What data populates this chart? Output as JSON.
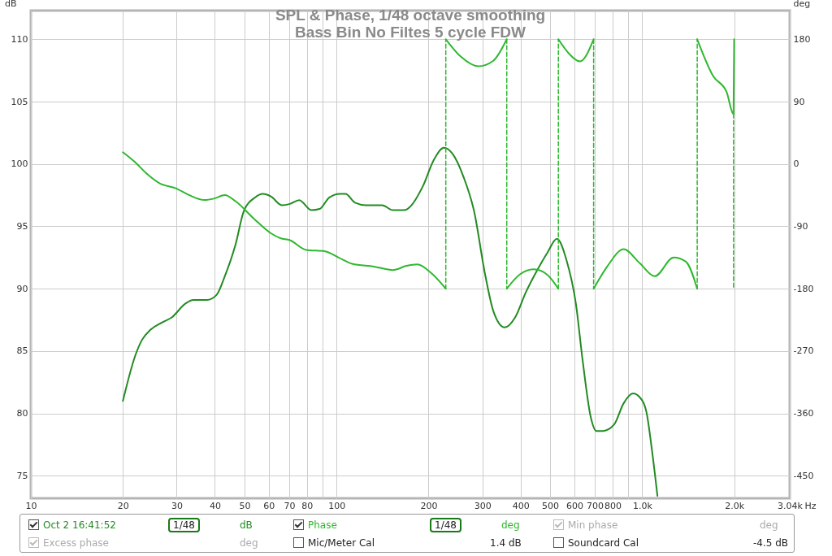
{
  "chart_data": {
    "type": "line",
    "title": "SPL & Phase, 1/48 octave smoothing",
    "subtitle": "Bass Bin No Filtes 5 cycle FDW",
    "xlabel": "Hz",
    "ylabel": "dB",
    "y2label": "deg",
    "log": "x",
    "grid": true,
    "legend": "bottom",
    "xlim": [
      10,
      3040
    ],
    "xticks": [
      10,
      20,
      30,
      40,
      50,
      60,
      70,
      80,
      {
        "value": 90,
        "label": null
      },
      100,
      200,
      300,
      400,
      500,
      600,
      700,
      800,
      {
        "value": 900,
        "label": null
      },
      {
        "value": 1000,
        "label": "1.0k"
      },
      {
        "value": 2000,
        "label": "2.0k"
      },
      {
        "value": 3040,
        "label": "3.04k"
      }
    ],
    "ylim": [
      73.2,
      112.3
    ],
    "yticks": [
      75,
      80,
      85,
      90,
      95,
      100,
      105,
      110
    ],
    "y2lim": [
      -482.4,
      221.4
    ],
    "y2ticks": [
      -450,
      -360,
      -270,
      -180,
      -90,
      0,
      90,
      180
    ],
    "series": [
      {
        "name": "Oct 2 16:41:52",
        "color": "#228b22",
        "x": [
          20,
          22,
          23.1,
          24.6,
          26.9,
          28.9,
          32,
          34,
          37.7,
          40.5,
          43.1,
          46.8,
          49.7,
          54,
          57.4,
          61,
          66.2,
          70.4,
          75.5,
          82.8,
          88.1,
          94.6,
          102.7,
          107,
          115,
          124.7,
          141,
          153,
          166,
          191.5,
          207.8,
          224.6,
          239.9,
          260,
          282,
          306,
          326,
          355,
          384,
          416,
          451.5,
          490,
          526,
          565.5,
          607,
          639,
          679,
          708,
          745,
          809,
          869,
          933,
          982,
          1033,
          1076,
          1122
        ],
        "values": [
          81.0,
          84.7,
          85.9,
          86.7,
          87.3,
          87.7,
          88.8,
          89.1,
          89.1,
          89.5,
          91.0,
          93.6,
          96.2,
          97.3,
          97.6,
          97.4,
          96.7,
          96.8,
          97.1,
          96.3,
          96.4,
          97.3,
          97.6,
          97.6,
          96.9,
          96.7,
          96.7,
          96.3,
          96.3,
          98.2,
          100.3,
          101.3,
          100.8,
          99.0,
          96.2,
          91.2,
          88.2,
          86.9,
          87.7,
          89.7,
          91.4,
          92.9,
          94.0,
          92.3,
          88.8,
          84.2,
          79.7,
          78.6,
          78.6,
          79.1,
          80.8,
          81.6,
          81.3,
          80.1,
          77.1,
          73.4
        ]
      },
      {
        "name": "Phase",
        "axis": "y2",
        "color": "#2eb82e",
        "x": [
          20,
          22,
          23.8,
          26.4,
          29.8,
          33,
          37,
          39.7,
          43.1,
          46.8,
          54,
          61,
          65.5,
          70.4,
          79.6,
          91.8,
          101.6,
          112.5,
          132.5,
          153,
          169.4,
          183.8,
          203.6,
          227.8
        ],
        "values": [
          17,
          2,
          -13,
          -28,
          -35,
          -45,
          -52,
          -50,
          -45,
          -54,
          -80,
          -100,
          -107,
          -110,
          -124,
          -126,
          -135,
          -144,
          -148,
          -153,
          -147,
          -145,
          -157,
          -180
        ]
      },
      {
        "axis": "y2",
        "color": "#2eb82e",
        "x": [
          227.8,
          254.9,
          291,
          325.8,
          360.6
        ],
        "values": [
          180,
          155,
          141,
          149,
          180
        ]
      },
      {
        "axis": "y2",
        "color": "#2eb82e",
        "x": [
          360.6,
          399,
          442.6,
          490,
          531.9
        ],
        "values": [
          -180,
          -159,
          -152,
          -160,
          -180
        ]
      },
      {
        "axis": "y2",
        "color": "#2eb82e",
        "x": [
          531.9,
          577,
          626,
          693.7
        ],
        "values": [
          180,
          159,
          148,
          180
        ]
      },
      {
        "axis": "y2",
        "color": "#2eb82e",
        "x": [
          693.7,
          771,
          869,
          982,
          1099,
          1268,
          1390,
          1514
        ],
        "values": [
          -180,
          -147,
          -123,
          -143,
          -162,
          -135,
          -141,
          -180
        ]
      },
      {
        "axis": "y2",
        "color": "#2eb82e",
        "x": [
          1514,
          1707,
          1889,
          1990,
          2000
        ],
        "values": [
          180,
          127,
          104,
          72,
          180
        ]
      },
      {
        "axis": "y2",
        "line_style": "dashed",
        "color": "#2eb82e",
        "x": [
          227.8,
          227.8
        ],
        "values": [
          -180,
          180
        ]
      },
      {
        "axis": "y2",
        "line_style": "dashed",
        "color": "#2eb82e",
        "x": [
          360.6,
          360.6
        ],
        "values": [
          180,
          -180
        ]
      },
      {
        "axis": "y2",
        "line_style": "dashed",
        "color": "#2eb82e",
        "x": [
          531.9,
          531.9
        ],
        "values": [
          -180,
          180
        ]
      },
      {
        "axis": "y2",
        "line_style": "dashed",
        "color": "#2eb82e",
        "x": [
          693.7,
          693.7
        ],
        "values": [
          180,
          -180
        ]
      },
      {
        "axis": "y2",
        "line_style": "dashed",
        "color": "#2eb82e",
        "x": [
          1514,
          1514
        ],
        "values": [
          -180,
          180
        ]
      },
      {
        "axis": "y2",
        "line_style": "dashed",
        "color": "#2eb82e",
        "x": [
          1990,
          1990
        ],
        "values": [
          72,
          -180
        ]
      }
    ],
    "annotations": [
      "1/48",
      "dB",
      "1/48",
      "deg",
      "Min phase",
      "deg",
      "Excess phase",
      "deg",
      "Mic/Meter Cal",
      "1.4 dB",
      "Soundcard Cal",
      "-4.5 dB"
    ]
  }
}
